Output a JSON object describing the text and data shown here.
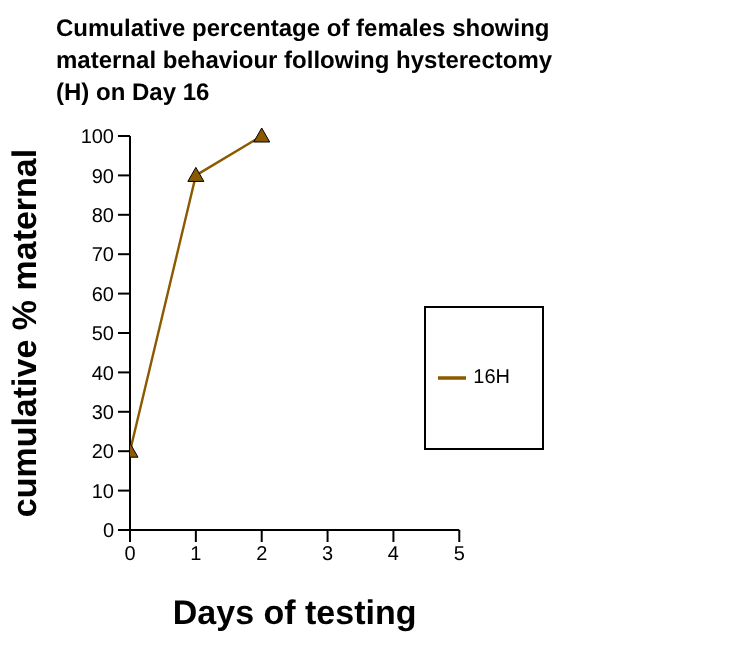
{
  "chart_data": {
    "type": "line",
    "title": "Cumulative percentage of females showing maternal behaviour following hysterectomy (H) on Day 16",
    "xlabel": "Days of testing",
    "ylabel": "cumulative % maternal",
    "x": [
      0,
      1,
      2
    ],
    "series": [
      {
        "name": "16H",
        "color": "#8b5a00",
        "values": [
          20,
          90,
          100
        ]
      }
    ],
    "xlim": [
      0,
      5
    ],
    "xticks": [
      0,
      1,
      2,
      3,
      4,
      5
    ],
    "ylim": [
      0,
      100
    ],
    "yticks": [
      0,
      10,
      20,
      30,
      40,
      50,
      60,
      70,
      80,
      90,
      100
    ],
    "grid": false,
    "legend": "right",
    "marker": "triangle",
    "line_style": "solid"
  }
}
